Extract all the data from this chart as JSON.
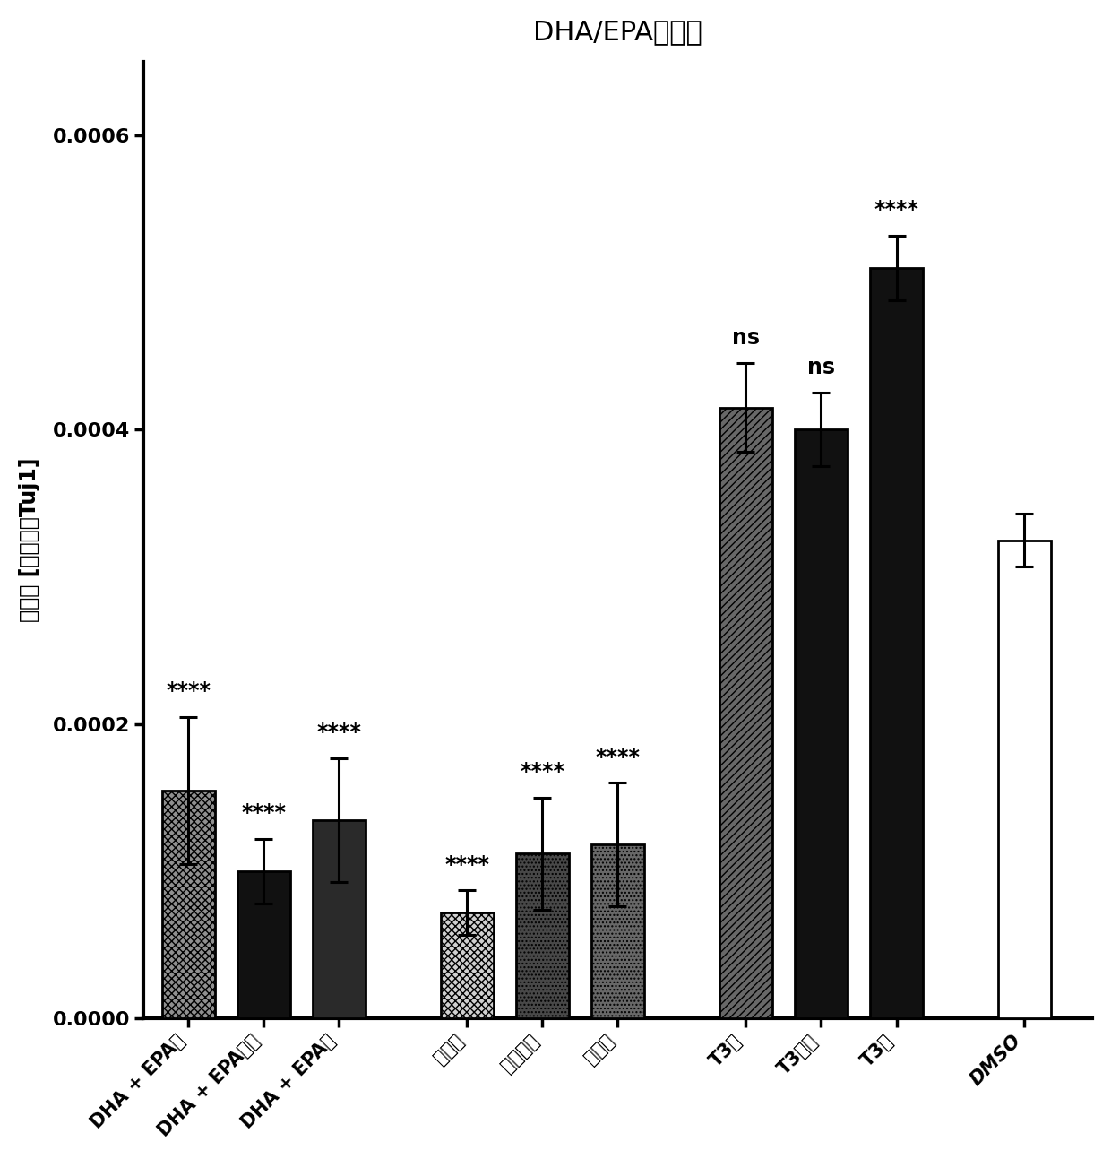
{
  "title": "DHA/EPA和胆碱",
  "ylabel": "突触点 [归一化为Tuj1]",
  "categories": [
    "DHA + EPA低",
    "DHA + EPA中等",
    "DHA + EPA高",
    "胆碱低",
    "胆碱中等",
    "胆碱高",
    "T3低",
    "T3中等",
    "T3高",
    "DMSO"
  ],
  "values": [
    0.000155,
    0.0001,
    0.000135,
    7.2e-05,
    0.000112,
    0.000118,
    0.000415,
    0.0004,
    0.00051,
    0.000325
  ],
  "errors": [
    5e-05,
    2.2e-05,
    4.2e-05,
    1.5e-05,
    3.8e-05,
    4.2e-05,
    3e-05,
    2.5e-05,
    2.2e-05,
    1.8e-05
  ],
  "significance": [
    "****",
    "****",
    "****",
    "****",
    "****",
    "****",
    "ns",
    "ns",
    "****",
    ""
  ],
  "group_positions": [
    0,
    1,
    2,
    3.7,
    4.7,
    5.7,
    7.4,
    8.4,
    9.4,
    11.1
  ],
  "bar_width": 0.7,
  "ylim": [
    0,
    0.00065
  ],
  "yticks": [
    0.0,
    0.0002,
    0.0004,
    0.0006
  ],
  "title_fontsize": 22,
  "ylabel_fontsize": 17,
  "tick_fontsize": 16,
  "sig_fontsize": 17,
  "xtick_fontsize": 15
}
